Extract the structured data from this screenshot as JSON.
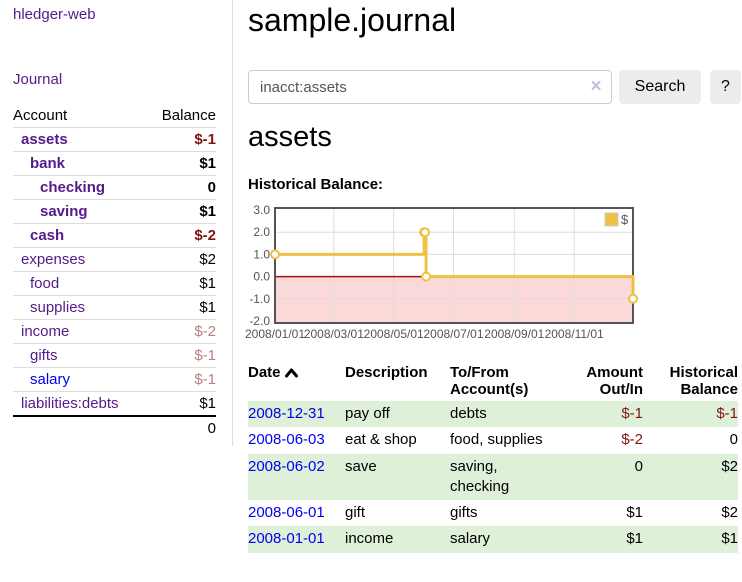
{
  "app": {
    "brand": "hledger-web"
  },
  "sidebar": {
    "journal_link": "Journal",
    "headers": {
      "account": "Account",
      "balance": "Balance"
    },
    "accounts": [
      {
        "name": "assets",
        "balance": "$-1"
      },
      {
        "name": "bank",
        "balance": "$1"
      },
      {
        "name": "checking",
        "balance": "0"
      },
      {
        "name": "saving",
        "balance": "$1"
      },
      {
        "name": "cash",
        "balance": "$-2"
      },
      {
        "name": "expenses",
        "balance": "$2"
      },
      {
        "name": "food",
        "balance": "$1"
      },
      {
        "name": "supplies",
        "balance": "$1"
      },
      {
        "name": "income",
        "balance": "$-2"
      },
      {
        "name": "gifts",
        "balance": "$-1"
      },
      {
        "name": "salary",
        "balance": "$-1"
      },
      {
        "name": "liabilities:debts",
        "balance": "$1"
      }
    ],
    "total": "0"
  },
  "header": {
    "title": "sample.journal"
  },
  "search": {
    "value": "inacct:assets",
    "clear_icon": "×",
    "button_label": "Search",
    "help_label": "?"
  },
  "account_page": {
    "heading": "assets",
    "chart_label": "Historical Balance:"
  },
  "chart_data": {
    "type": "line",
    "step": true,
    "title": "Historical Balance of assets",
    "series": [
      {
        "name": "$",
        "color": "#edc240",
        "points": [
          [
            "2008-01-01",
            1
          ],
          [
            "2008-06-01",
            2
          ],
          [
            "2008-06-02",
            2
          ],
          [
            "2008-06-03",
            0
          ],
          [
            "2008-12-31",
            -1
          ]
        ]
      }
    ],
    "x_ticks": [
      "2008/01/01",
      "2008/03/01",
      "2008/05/01",
      "2008/07/01",
      "2008/09/01",
      "2008/11/01"
    ],
    "y_ticks": [
      3.0,
      2.0,
      1.0,
      0.0,
      -1.0,
      -2.0
    ],
    "xlim": [
      "2008-01-01",
      "2008-12-31"
    ],
    "ylim": [
      -2,
      3
    ],
    "legend_position": "top-right",
    "grid": true,
    "colors": {
      "negative_region_fill": "#fbd9d9",
      "zero_line": "#aa1111",
      "gridline": "#dddddd",
      "border": "#545454",
      "tick_text": "#545454",
      "marker_fill": "#ffffff"
    }
  },
  "register": {
    "sort_icon": "chevron-up",
    "headers": [
      "Date",
      "Description",
      "To/From Account(s)",
      "Amount Out/In",
      "Historical Balance"
    ],
    "rows": [
      {
        "date": "2008-12-31",
        "description": "pay off",
        "accounts": "debts",
        "amount": "$-1",
        "balance": "$-1"
      },
      {
        "date": "2008-06-03",
        "description": "eat & shop",
        "accounts": "food, supplies",
        "amount": "$-2",
        "balance": "0"
      },
      {
        "date": "2008-06-02",
        "description": "save",
        "accounts": "saving, checking",
        "amount": "0",
        "balance": "$2"
      },
      {
        "date": "2008-06-01",
        "description": "gift",
        "accounts": "gifts",
        "amount": "$1",
        "balance": "$2"
      },
      {
        "date": "2008-01-01",
        "description": "income",
        "accounts": "salary",
        "amount": "$1",
        "balance": "$1"
      }
    ]
  }
}
